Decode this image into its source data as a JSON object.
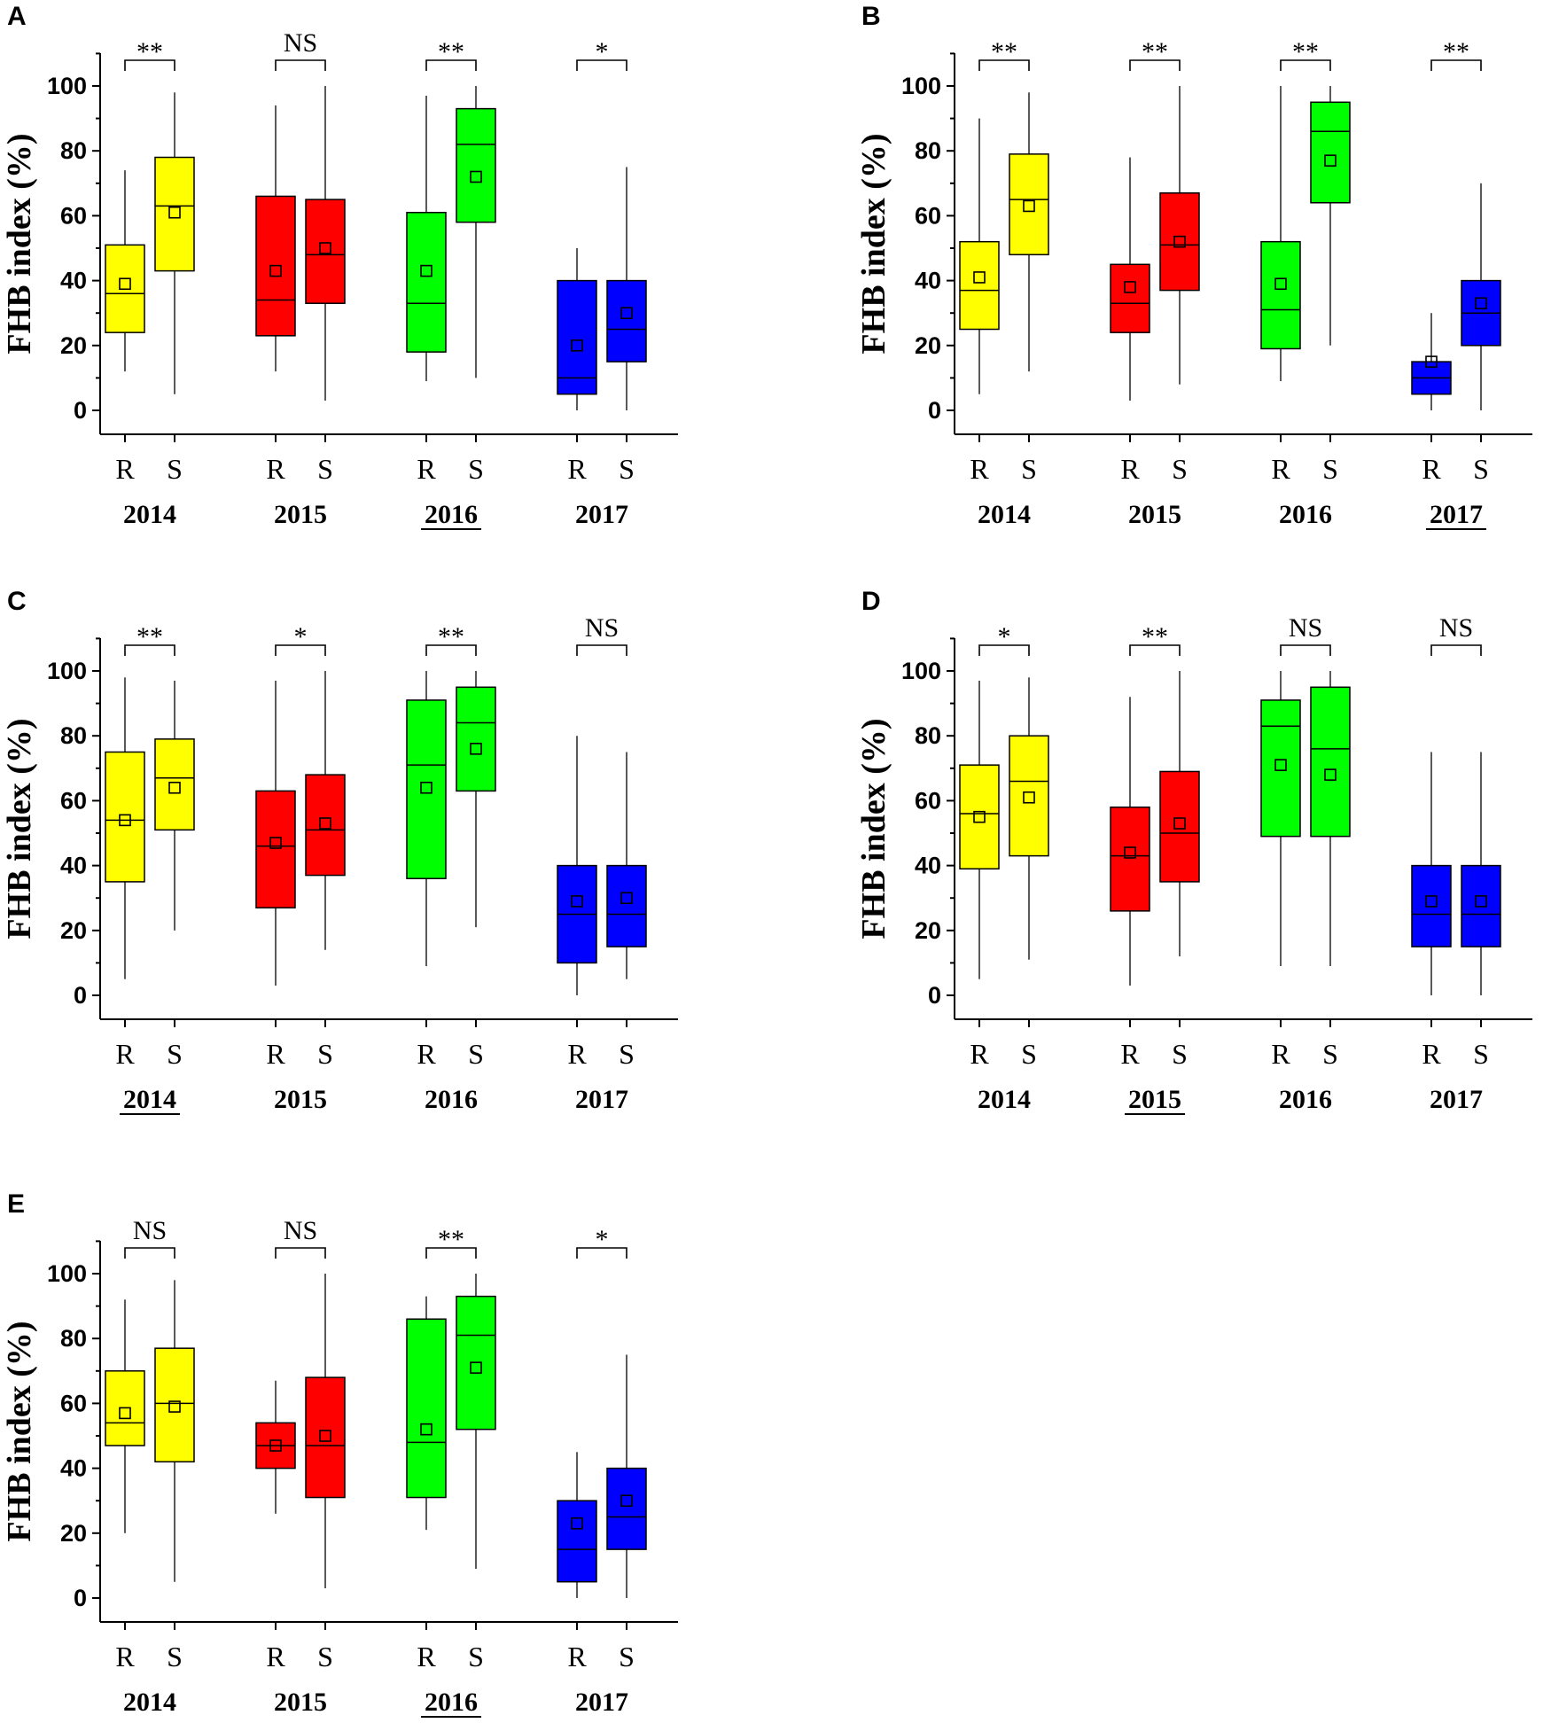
{
  "chart_data": [
    {
      "type": "box",
      "panel": "A",
      "ylabel": "FHB index (%)",
      "yticks": [
        0,
        20,
        40,
        60,
        80,
        100
      ],
      "ylim": [
        -8,
        110
      ],
      "underlined_year": "2016",
      "groups": [
        {
          "year": "2014",
          "color": "#ffff00",
          "significance": "**",
          "boxes": [
            {
              "label": "R",
              "min": 12,
              "q1": 24,
              "median": 36,
              "q3": 51,
              "max": 74,
              "mean": 39
            },
            {
              "label": "S",
              "min": 5,
              "q1": 43,
              "median": 63,
              "q3": 78,
              "max": 98,
              "mean": 61
            }
          ]
        },
        {
          "year": "2015",
          "color": "#ff0000",
          "significance": "NS",
          "boxes": [
            {
              "label": "R",
              "min": 12,
              "q1": 23,
              "median": 34,
              "q3": 66,
              "max": 94,
              "mean": 43
            },
            {
              "label": "S",
              "min": 3,
              "q1": 33,
              "median": 48,
              "q3": 65,
              "max": 100,
              "mean": 50
            }
          ]
        },
        {
          "year": "2016",
          "color": "#00ff00",
          "significance": "**",
          "boxes": [
            {
              "label": "R",
              "min": 9,
              "q1": 18,
              "median": 33,
              "q3": 61,
              "max": 97,
              "mean": 43
            },
            {
              "label": "S",
              "min": 10,
              "q1": 58,
              "median": 82,
              "q3": 93,
              "max": 100,
              "mean": 72
            }
          ]
        },
        {
          "year": "2017",
          "color": "#0000ff",
          "significance": "*",
          "boxes": [
            {
              "label": "R",
              "min": 0,
              "q1": 5,
              "median": 10,
              "q3": 40,
              "max": 50,
              "mean": 20
            },
            {
              "label": "S",
              "min": 0,
              "q1": 15,
              "median": 25,
              "q3": 40,
              "max": 75,
              "mean": 30
            }
          ]
        }
      ]
    },
    {
      "type": "box",
      "panel": "B",
      "ylabel": "FHB index (%)",
      "yticks": [
        0,
        20,
        40,
        60,
        80,
        100
      ],
      "ylim": [
        -8,
        110
      ],
      "underlined_year": "2017",
      "groups": [
        {
          "year": "2014",
          "color": "#ffff00",
          "significance": "**",
          "boxes": [
            {
              "label": "R",
              "min": 5,
              "q1": 25,
              "median": 37,
              "q3": 52,
              "max": 90,
              "mean": 41
            },
            {
              "label": "S",
              "min": 12,
              "q1": 48,
              "median": 65,
              "q3": 79,
              "max": 98,
              "mean": 63
            }
          ]
        },
        {
          "year": "2015",
          "color": "#ff0000",
          "significance": "**",
          "boxes": [
            {
              "label": "R",
              "min": 3,
              "q1": 24,
              "median": 33,
              "q3": 45,
              "max": 78,
              "mean": 38
            },
            {
              "label": "S",
              "min": 8,
              "q1": 37,
              "median": 51,
              "q3": 67,
              "max": 100,
              "mean": 52
            }
          ]
        },
        {
          "year": "2016",
          "color": "#00ff00",
          "significance": "**",
          "boxes": [
            {
              "label": "R",
              "min": 9,
              "q1": 19,
              "median": 31,
              "q3": 52,
              "max": 100,
              "mean": 39
            },
            {
              "label": "S",
              "min": 20,
              "q1": 64,
              "median": 86,
              "q3": 95,
              "max": 100,
              "mean": 77
            }
          ]
        },
        {
          "year": "2017",
          "color": "#0000ff",
          "significance": "**",
          "boxes": [
            {
              "label": "R",
              "min": 0,
              "q1": 5,
              "median": 10,
              "q3": 15,
              "max": 30,
              "mean": 15
            },
            {
              "label": "S",
              "min": 0,
              "q1": 20,
              "median": 30,
              "q3": 40,
              "max": 70,
              "mean": 33
            }
          ]
        }
      ]
    },
    {
      "type": "box",
      "panel": "C",
      "ylabel": "FHB index (%)",
      "yticks": [
        0,
        20,
        40,
        60,
        80,
        100
      ],
      "ylim": [
        -8,
        110
      ],
      "underlined_year": "2014",
      "groups": [
        {
          "year": "2014",
          "color": "#ffff00",
          "significance": "**",
          "boxes": [
            {
              "label": "R",
              "min": 5,
              "q1": 35,
              "median": 54,
              "q3": 75,
              "max": 98,
              "mean": 54
            },
            {
              "label": "S",
              "min": 20,
              "q1": 51,
              "median": 67,
              "q3": 79,
              "max": 97,
              "mean": 64
            }
          ]
        },
        {
          "year": "2015",
          "color": "#ff0000",
          "significance": "*",
          "boxes": [
            {
              "label": "R",
              "min": 3,
              "q1": 27,
              "median": 46,
              "q3": 63,
              "max": 97,
              "mean": 47
            },
            {
              "label": "S",
              "min": 14,
              "q1": 37,
              "median": 51,
              "q3": 68,
              "max": 100,
              "mean": 53
            }
          ]
        },
        {
          "year": "2016",
          "color": "#00ff00",
          "significance": "**",
          "boxes": [
            {
              "label": "R",
              "min": 9,
              "q1": 36,
              "median": 71,
              "q3": 91,
              "max": 100,
              "mean": 64
            },
            {
              "label": "S",
              "min": 21,
              "q1": 63,
              "median": 84,
              "q3": 95,
              "max": 100,
              "mean": 76
            }
          ]
        },
        {
          "year": "2017",
          "color": "#0000ff",
          "significance": "NS",
          "boxes": [
            {
              "label": "R",
              "min": 0,
              "q1": 10,
              "median": 25,
              "q3": 40,
              "max": 80,
              "mean": 29
            },
            {
              "label": "S",
              "min": 5,
              "q1": 15,
              "median": 25,
              "q3": 40,
              "max": 75,
              "mean": 30
            }
          ]
        }
      ]
    },
    {
      "type": "box",
      "panel": "D",
      "ylabel": "FHB index (%)",
      "yticks": [
        0,
        20,
        40,
        60,
        80,
        100
      ],
      "ylim": [
        -8,
        110
      ],
      "underlined_year": "2015",
      "groups": [
        {
          "year": "2014",
          "color": "#ffff00",
          "significance": "*",
          "boxes": [
            {
              "label": "R",
              "min": 5,
              "q1": 39,
              "median": 56,
              "q3": 71,
              "max": 97,
              "mean": 55
            },
            {
              "label": "S",
              "min": 11,
              "q1": 43,
              "median": 66,
              "q3": 80,
              "max": 98,
              "mean": 61
            }
          ]
        },
        {
          "year": "2015",
          "color": "#ff0000",
          "significance": "**",
          "boxes": [
            {
              "label": "R",
              "min": 3,
              "q1": 26,
              "median": 43,
              "q3": 58,
              "max": 92,
              "mean": 44
            },
            {
              "label": "S",
              "min": 12,
              "q1": 35,
              "median": 50,
              "q3": 69,
              "max": 100,
              "mean": 53
            }
          ]
        },
        {
          "year": "2016",
          "color": "#00ff00",
          "significance": "NS",
          "boxes": [
            {
              "label": "R",
              "min": 9,
              "q1": 49,
              "median": 83,
              "q3": 91,
              "max": 100,
              "mean": 71
            },
            {
              "label": "S",
              "min": 9,
              "q1": 49,
              "median": 76,
              "q3": 95,
              "max": 100,
              "mean": 68
            }
          ]
        },
        {
          "year": "2017",
          "color": "#0000ff",
          "significance": "NS",
          "boxes": [
            {
              "label": "R",
              "min": 0,
              "q1": 15,
              "median": 25,
              "q3": 40,
              "max": 75,
              "mean": 29
            },
            {
              "label": "S",
              "min": 0,
              "q1": 15,
              "median": 25,
              "q3": 40,
              "max": 75,
              "mean": 29
            }
          ]
        }
      ]
    },
    {
      "type": "box",
      "panel": "E",
      "ylabel": "FHB index (%)",
      "yticks": [
        0,
        20,
        40,
        60,
        80,
        100
      ],
      "ylim": [
        -8,
        110
      ],
      "underlined_year": "2016",
      "groups": [
        {
          "year": "2014",
          "color": "#ffff00",
          "significance": "NS",
          "boxes": [
            {
              "label": "R",
              "min": 20,
              "q1": 47,
              "median": 54,
              "q3": 70,
              "max": 92,
              "mean": 57
            },
            {
              "label": "S",
              "min": 5,
              "q1": 42,
              "median": 60,
              "q3": 77,
              "max": 98,
              "mean": 59
            }
          ]
        },
        {
          "year": "2015",
          "color": "#ff0000",
          "significance": "NS",
          "boxes": [
            {
              "label": "R",
              "min": 26,
              "q1": 40,
              "median": 47,
              "q3": 54,
              "max": 67,
              "mean": 47
            },
            {
              "label": "S",
              "min": 3,
              "q1": 31,
              "median": 47,
              "q3": 68,
              "max": 100,
              "mean": 50
            }
          ]
        },
        {
          "year": "2016",
          "color": "#00ff00",
          "significance": "**",
          "boxes": [
            {
              "label": "R",
              "min": 21,
              "q1": 31,
              "median": 48,
              "q3": 86,
              "max": 93,
              "mean": 52
            },
            {
              "label": "S",
              "min": 9,
              "q1": 52,
              "median": 81,
              "q3": 93,
              "max": 100,
              "mean": 71
            }
          ]
        },
        {
          "year": "2017",
          "color": "#0000ff",
          "significance": "*",
          "boxes": [
            {
              "label": "R",
              "min": 0,
              "q1": 5,
              "median": 15,
              "q3": 30,
              "max": 45,
              "mean": 23
            },
            {
              "label": "S",
              "min": 0,
              "q1": 15,
              "median": 25,
              "q3": 40,
              "max": 75,
              "mean": 30
            }
          ]
        }
      ]
    }
  ]
}
